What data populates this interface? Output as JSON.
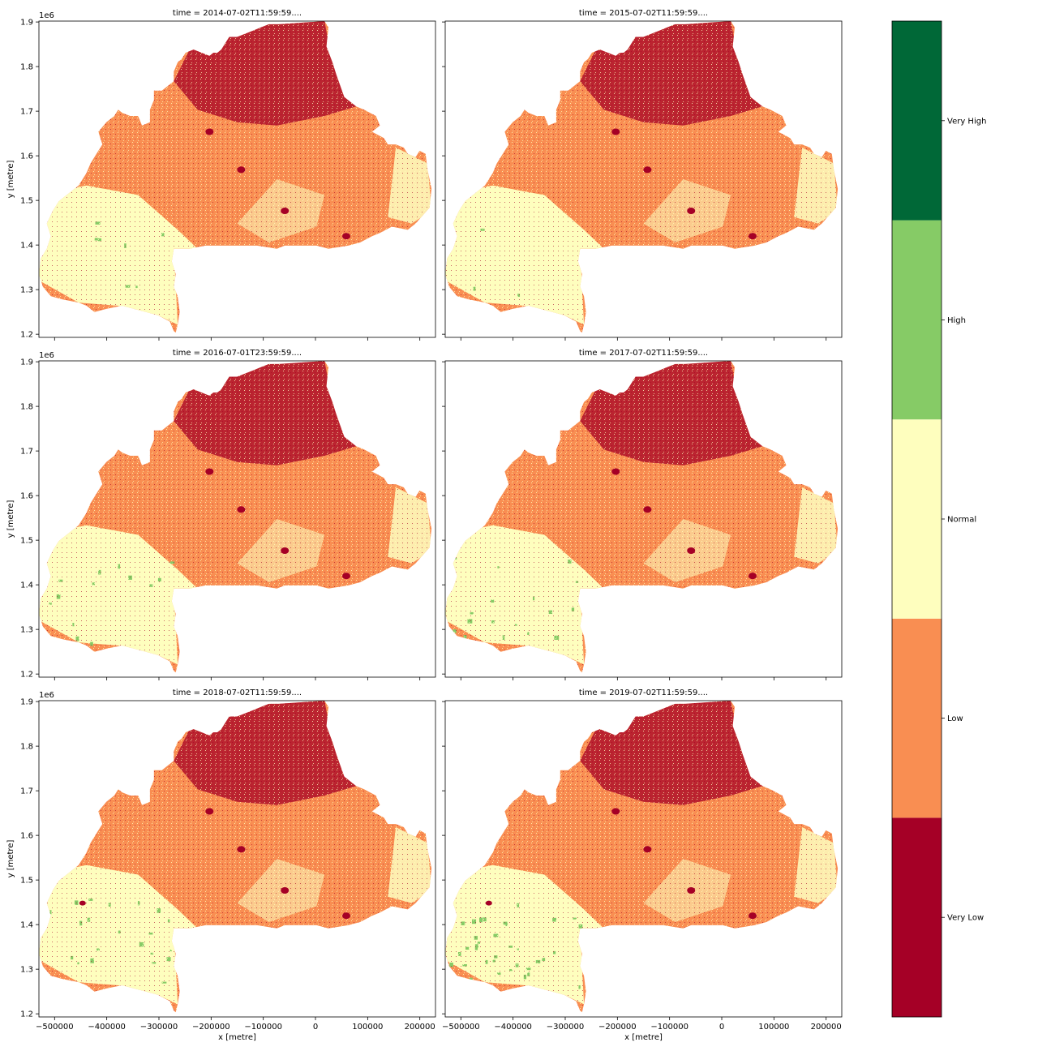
{
  "figure": {
    "panel_titles": [
      "time = 2014-07-02T11:59:59....",
      "time = 2015-07-02T11:59:59....",
      "time = 2016-07-01T23:59:59....",
      "time = 2017-07-02T11:59:59....",
      "time = 2018-07-02T11:59:59....",
      "time = 2019-07-02T11:59:59...."
    ],
    "xlabel": "x [metre]",
    "ylabel": "y [metre]",
    "y_offset_label": "1e6",
    "x_ticks": [
      "−500000",
      "−400000",
      "−300000",
      "−200000",
      "−100000",
      "0",
      "100000",
      "200000"
    ],
    "x_tick_values": [
      -500000,
      -400000,
      -300000,
      -200000,
      -100000,
      0,
      100000,
      200000
    ],
    "y_ticks": [
      "1.2",
      "1.3",
      "1.4",
      "1.5",
      "1.6",
      "1.7",
      "1.8",
      "1.9"
    ],
    "y_tick_values": [
      1.2,
      1.3,
      1.4,
      1.5,
      1.6,
      1.7,
      1.8,
      1.9
    ],
    "xlim": [
      -530000,
      230000
    ],
    "ylim": [
      1.193,
      1.902
    ]
  },
  "colorbar": {
    "categories": [
      {
        "label": "Very Low",
        "color": "#a50026"
      },
      {
        "label": "Low",
        "color": "#f98e52"
      },
      {
        "label": "Normal",
        "color": "#fefebe"
      },
      {
        "label": "High",
        "color": "#86cb66"
      },
      {
        "label": "Very High",
        "color": "#006837"
      }
    ]
  },
  "chart_data": {
    "type": "heatmap",
    "region_colors": {
      "unmasked_default": "#f98e52"
    },
    "panels": [
      {
        "title": "time = 2014-07-02T11:59:59....",
        "dominant": [
          "Low",
          "Normal",
          "Very Low"
        ]
      },
      {
        "title": "time = 2015-07-02T11:59:59....",
        "dominant": [
          "Low",
          "Normal",
          "Very Low"
        ]
      },
      {
        "title": "time = 2016-07-01T23:59:59....",
        "dominant": [
          "Low",
          "Normal",
          "Very Low"
        ]
      },
      {
        "title": "time = 2017-07-02T11:59:59....",
        "dominant": [
          "Low",
          "Normal",
          "Very Low"
        ]
      },
      {
        "title": "time = 2018-07-02T11:59:59....",
        "dominant": [
          "Low",
          "Normal",
          "Very Low"
        ]
      },
      {
        "title": "time = 2019-07-02T11:59:59....",
        "dominant": [
          "Low",
          "Normal",
          "High"
        ]
      }
    ],
    "xlabel": "x [metre]",
    "ylabel": "y [metre]",
    "colorbar_labels": [
      "Very Low",
      "Low",
      "Normal",
      "High",
      "Very High"
    ]
  }
}
